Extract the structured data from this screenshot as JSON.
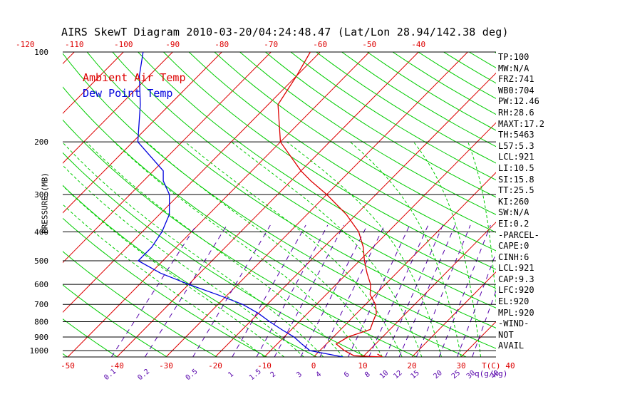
{
  "title": "AIRS SkewT Diagram 2010-03-20/04:24:48.47 (Lat/Lon 28.94/142.38 deg)",
  "legend": {
    "air": "Ambient Air Temp",
    "dew": "Dew Point Temp"
  },
  "colors": {
    "air": "#dd0000",
    "dew": "#0000dd",
    "isotherm": "#dd0000",
    "dry_adiabat": "#00cc00",
    "moist_adiabat": "#00cc00",
    "mixing_ratio": "#5500aa",
    "isobar": "#000000"
  },
  "chart_data": {
    "type": "line",
    "ylabel": "PRESSURE (MB)",
    "y_scale": "log",
    "ylim": [
      1050,
      100
    ],
    "pressure_ticks": [
      "100",
      "200",
      "300",
      "400",
      "500",
      "600",
      "700",
      "800",
      "900",
      "1000"
    ],
    "top_temp_ticks": [
      "-120",
      "-110",
      "-100",
      "-90",
      "-80",
      "-70",
      "-60",
      "-50",
      "-40"
    ],
    "bottom_temp_ticks": [
      "-50",
      "-40",
      "-30",
      "-20",
      "-10",
      "0",
      "10",
      "20",
      "30",
      "40"
    ],
    "bottom_temp_unit": "T(C)",
    "mixing_ratio_ticks": [
      "0.1",
      "0.2",
      "0.5",
      "1",
      "1.5",
      "2",
      "3",
      "4",
      "6",
      "8",
      "10",
      "12",
      "15",
      "20",
      "25",
      "30",
      "40"
    ],
    "mixing_ratio_unit": "q(g/kg)",
    "series": [
      {
        "name": "Ambient Air Temp",
        "points": [
          [
            1050,
            14
          ],
          [
            1040,
            8
          ],
          [
            1000,
            5
          ],
          [
            950,
            2
          ],
          [
            900,
            3
          ],
          [
            850,
            6
          ],
          [
            800,
            5
          ],
          [
            750,
            4
          ],
          [
            700,
            2
          ],
          [
            650,
            -1
          ],
          [
            600,
            -3
          ],
          [
            550,
            -6
          ],
          [
            500,
            -9
          ],
          [
            450,
            -12
          ],
          [
            400,
            -16
          ],
          [
            350,
            -22
          ],
          [
            300,
            -30
          ],
          [
            270,
            -36
          ],
          [
            250,
            -40
          ],
          [
            200,
            -50
          ],
          [
            150,
            -58
          ],
          [
            120,
            -60
          ],
          [
            100,
            -62
          ]
        ]
      },
      {
        "name": "Dew Point Temp",
        "points": [
          [
            1050,
            6
          ],
          [
            1000,
            -2
          ],
          [
            950,
            -5
          ],
          [
            900,
            -8
          ],
          [
            850,
            -12
          ],
          [
            800,
            -16
          ],
          [
            750,
            -20
          ],
          [
            700,
            -25
          ],
          [
            650,
            -32
          ],
          [
            600,
            -40
          ],
          [
            550,
            -48
          ],
          [
            500,
            -55
          ],
          [
            450,
            -55
          ],
          [
            400,
            -56
          ],
          [
            350,
            -58
          ],
          [
            300,
            -62
          ],
          [
            270,
            -66
          ],
          [
            250,
            -68
          ],
          [
            200,
            -79
          ],
          [
            150,
            -86
          ],
          [
            120,
            -92
          ],
          [
            100,
            -96
          ]
        ]
      }
    ],
    "grid": true
  },
  "stats": [
    "TP:100",
    "MW:N/A",
    "FRZ:741",
    "WB0:704",
    "PW:12.46",
    "RH:28.6",
    "MAXT:17.2",
    "TH:5463",
    "L57:5.3",
    "LCL:921",
    "LI:10.5",
    "SI:15.8",
    "TT:25.5",
    "KI:260",
    "SW:N/A",
    "EI:0.2",
    "-PARCEL-",
    "CAPE:0",
    "CINH:6",
    "LCL:921",
    "CAP:9.3",
    "LFC:920",
    "EL:920",
    "MPL:920",
    "-WIND-",
    "NOT",
    "AVAIL"
  ]
}
